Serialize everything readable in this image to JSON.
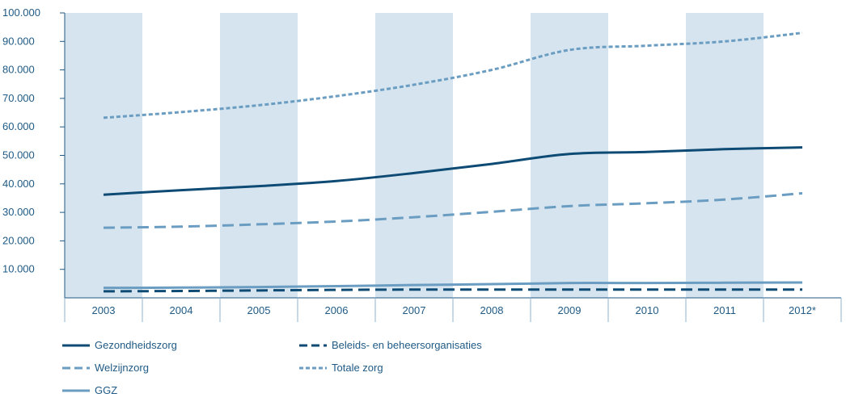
{
  "chart_data": {
    "type": "line",
    "categories": [
      "2003",
      "2004",
      "2005",
      "2006",
      "2007",
      "2008",
      "2009",
      "2010",
      "2011",
      "2012*"
    ],
    "ylim": [
      0,
      100000
    ],
    "yticks": [
      {
        "value": 10000,
        "label": "10.000"
      },
      {
        "value": 20000,
        "label": "20.000"
      },
      {
        "value": 30000,
        "label": "30.000"
      },
      {
        "value": 40000,
        "label": "40.000"
      },
      {
        "value": 50000,
        "label": "50.000"
      },
      {
        "value": 60000,
        "label": "60.000"
      },
      {
        "value": 70000,
        "label": "70.000"
      },
      {
        "value": 80000,
        "label": "80.000"
      },
      {
        "value": 90000,
        "label": "90.000"
      },
      {
        "value": 100000,
        "label": "100.000"
      }
    ],
    "shaded_columns": [
      0,
      2,
      4,
      6,
      8
    ],
    "grid": false,
    "legend_position": "bottom",
    "series": [
      {
        "name": "Gezondheidszorg",
        "style": "solid",
        "color": "#0d4a74",
        "values": [
          36200,
          37800,
          39200,
          41000,
          43800,
          47000,
          50500,
          51200,
          52200,
          52800
        ]
      },
      {
        "name": "Welzijnzorg",
        "style": "dashed",
        "color": "#6a9dc1",
        "values": [
          24600,
          25000,
          25800,
          26800,
          28300,
          30200,
          32200,
          33200,
          34500,
          36700
        ]
      },
      {
        "name": "GGZ",
        "style": "solid",
        "color": "#6a9dc1",
        "values": [
          3500,
          3600,
          3800,
          4100,
          4500,
          4800,
          5200,
          5200,
          5300,
          5400
        ]
      },
      {
        "name": "Beleids- en beheersorganisaties",
        "style": "dashed",
        "color": "#0d4a74",
        "values": [
          2300,
          2400,
          2600,
          2800,
          2900,
          2900,
          2900,
          2900,
          2900,
          2900
        ]
      },
      {
        "name": "Totale zorg",
        "style": "dotted",
        "color": "#6a9dc1",
        "values": [
          63200,
          65200,
          67600,
          70800,
          74800,
          80000,
          87000,
          88500,
          90000,
          93000
        ]
      }
    ]
  }
}
